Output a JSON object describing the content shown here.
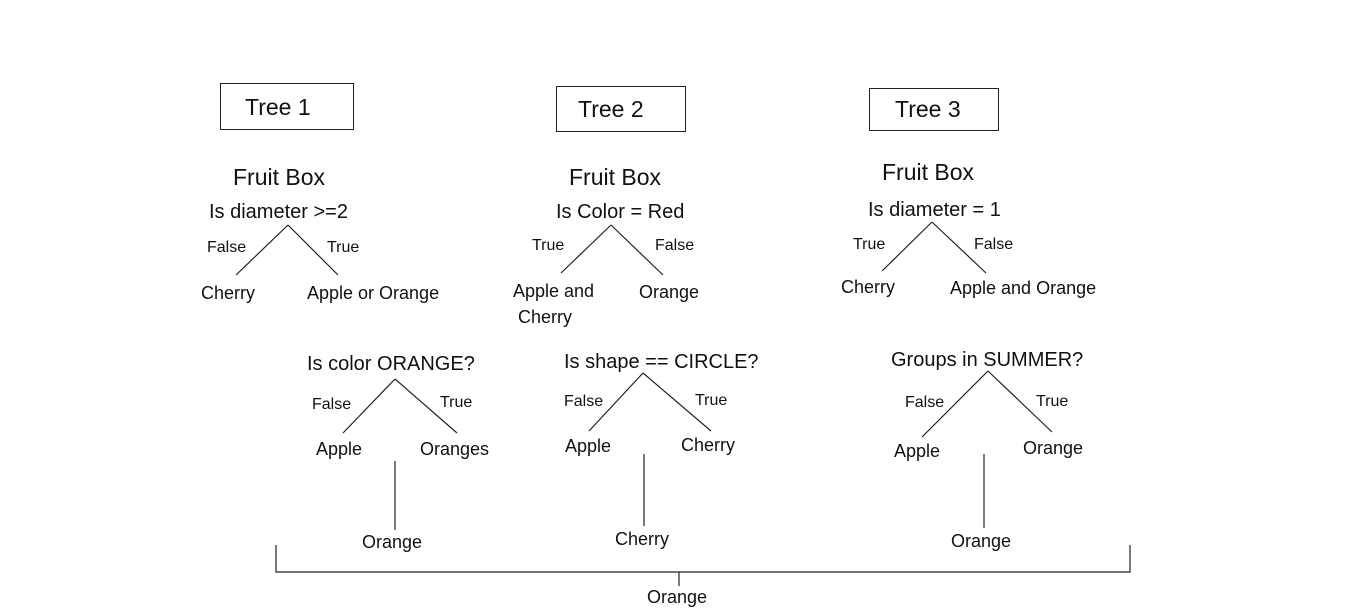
{
  "trees": [
    {
      "title": "Tree 1",
      "root": "Fruit Box",
      "question": "Is diameter >=2",
      "left_edge": "False",
      "right_edge": "True",
      "left_leaf": "Cherry",
      "right_leaf": "Apple or Orange",
      "sub_question": "Is color ORANGE?",
      "sub_left_edge": "False",
      "sub_right_edge": "True",
      "sub_left_leaf": "Apple",
      "sub_right_leaf": "Oranges",
      "result": "Orange"
    },
    {
      "title": "Tree 2",
      "root": "Fruit Box",
      "question": "Is Color = Red",
      "left_edge": "True",
      "right_edge": "False",
      "left_leaf_line1": "Apple and",
      "left_leaf_line2": "Cherry",
      "right_leaf": "Orange",
      "sub_question": "Is shape == CIRCLE?",
      "sub_left_edge": "False",
      "sub_right_edge": "True",
      "sub_left_leaf": "Apple",
      "sub_right_leaf": "Cherry",
      "result": "Cherry"
    },
    {
      "title": "Tree 3",
      "root": "Fruit Box",
      "question": "Is diameter = 1",
      "left_edge": "True",
      "right_edge": "False",
      "left_leaf": "Cherry",
      "right_leaf": "Apple and Orange",
      "sub_question": "Groups in SUMMER?",
      "sub_left_edge": "False",
      "sub_right_edge": "True",
      "sub_left_leaf": "Apple",
      "sub_right_leaf": "Orange",
      "result": "Orange"
    }
  ],
  "final_result": "Orange"
}
